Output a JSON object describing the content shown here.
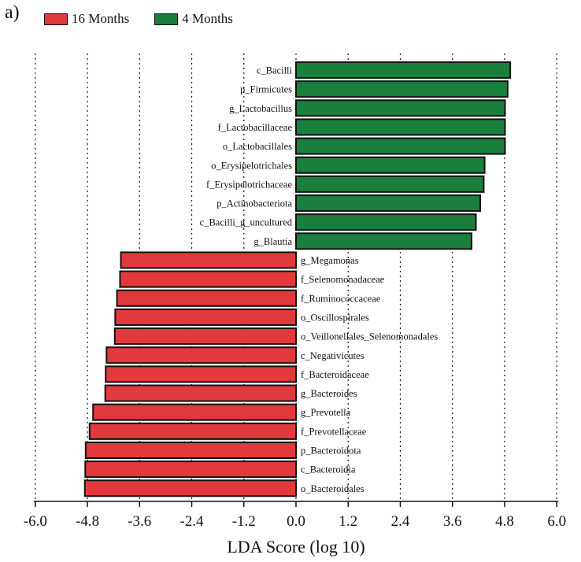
{
  "panel_label": "a)",
  "chart_data": {
    "type": "bar",
    "orientation": "horizontal",
    "title": "",
    "xlabel": "LDA Score (log 10)",
    "ylabel": "",
    "xlim": [
      -6.0,
      6.0
    ],
    "ticks": [
      "-6.0",
      "-4.8",
      "-3.6",
      "-2.4",
      "-1.2",
      "0.0",
      "1.2",
      "2.4",
      "3.6",
      "4.8",
      "6.0"
    ],
    "grid": "vertical dotted",
    "legend": {
      "position": "top-left",
      "entries": [
        {
          "name": "16 Months",
          "color": "#e03a3c"
        },
        {
          "name": "4 Months",
          "color": "#1a7f3c"
        }
      ]
    },
    "series": [
      {
        "name": "4 Months",
        "color": "#1a7f3c",
        "categories": [
          "c_Bacilli",
          "p_Firmicutes",
          "g_Lactobacillus",
          "f_Lactobacillaceae",
          "o_Lactobacillales",
          "o_Erysipelotrichales",
          "f_Erysipelotrichaceae",
          "p_Actinobacteriota",
          "c_Bacilli_g_uncultured",
          "g_Blautia"
        ],
        "values": [
          4.93,
          4.87,
          4.81,
          4.81,
          4.81,
          4.34,
          4.32,
          4.24,
          4.14,
          4.04
        ]
      },
      {
        "name": "16 Months",
        "color": "#e03a3c",
        "categories": [
          "g_Megamonas",
          "f_Selenomonadaceae",
          "f_Ruminococcaceae",
          "o_Oscillospirales",
          "o_Veillonellales_Selenomonadales",
          "c_Negativicutes",
          "f_Bacteroidaceae",
          "g_Bacteroides",
          "g_Prevotella",
          "f_Prevotellaceae",
          "p_Bacteroidota",
          "c_Bacteroidia",
          "o_Bacteroidales"
        ],
        "values": [
          -4.03,
          -4.05,
          -4.12,
          -4.16,
          -4.17,
          -4.36,
          -4.38,
          -4.39,
          -4.67,
          -4.75,
          -4.84,
          -4.85,
          -4.86
        ]
      }
    ]
  }
}
